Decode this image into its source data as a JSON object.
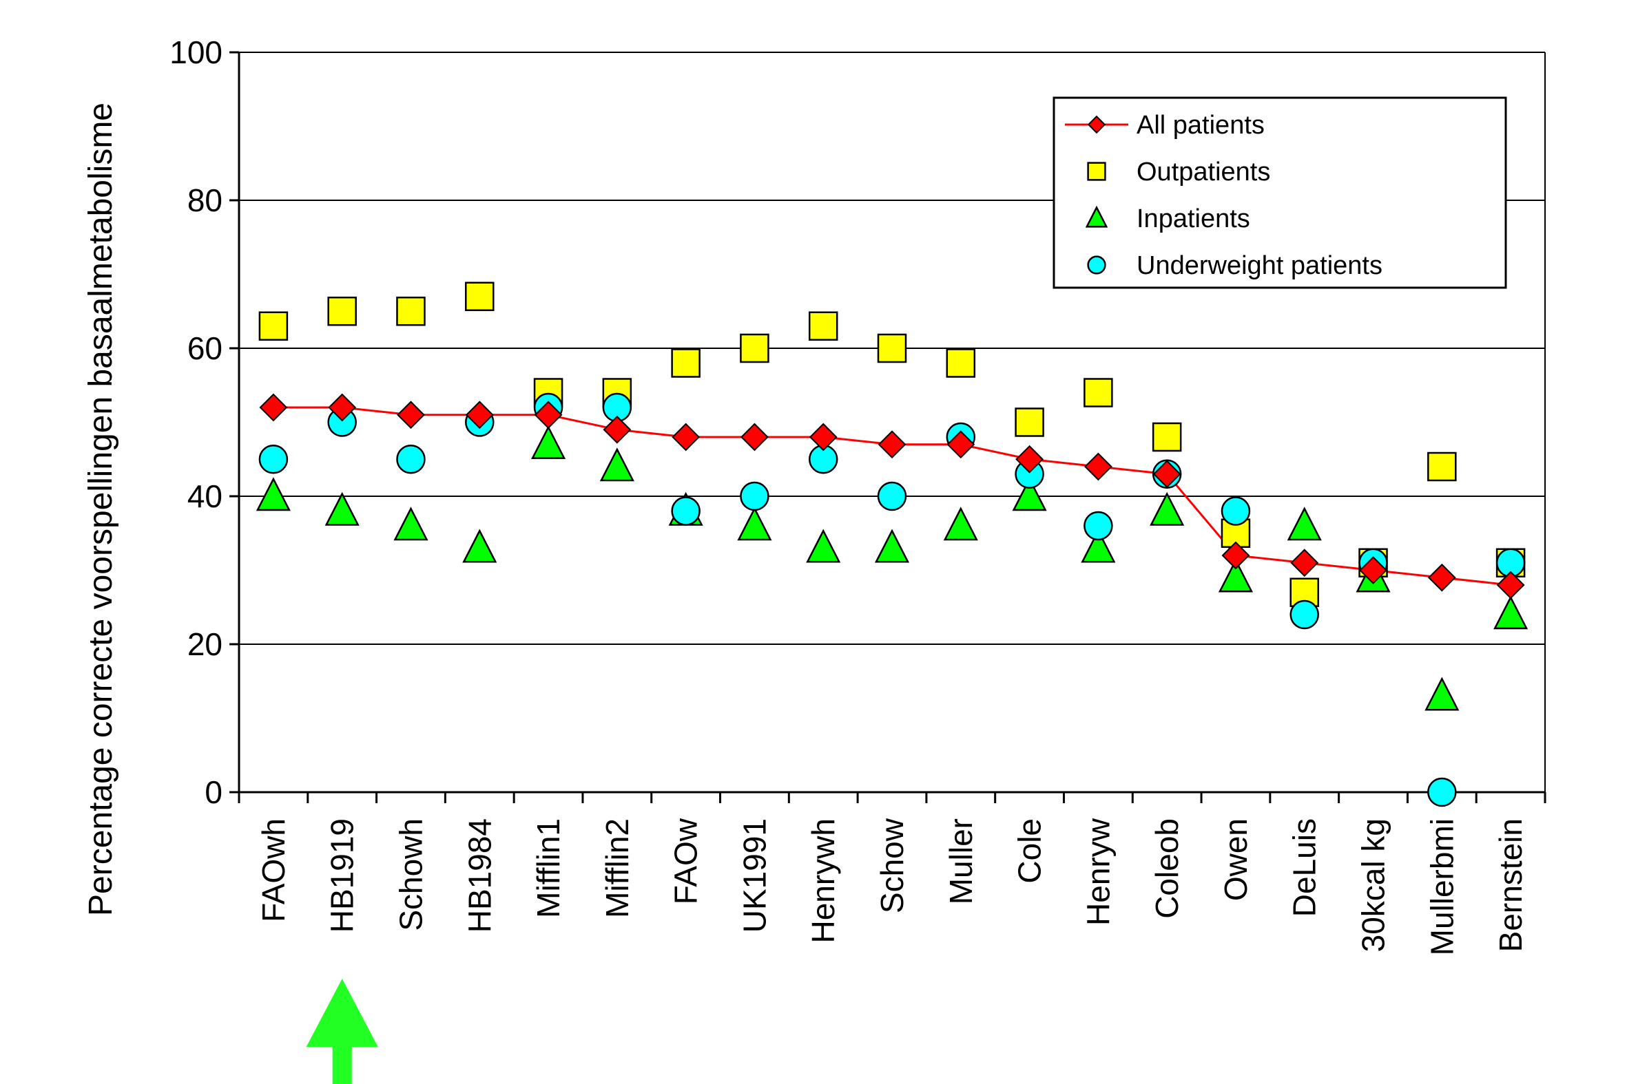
{
  "chart_data": {
    "type": "scatter",
    "title": "",
    "xlabel": "",
    "ylabel": "Percentage correcte voorspellingen basaalmetabolisme",
    "ylim": [
      0,
      100
    ],
    "yticks": [
      0,
      20,
      40,
      60,
      80,
      100
    ],
    "grid": "horizontal",
    "legend_position": "top-right",
    "categories": [
      "FAOwh",
      "HB1919",
      "Schowh",
      "HB1984",
      "Mifflin1",
      "Mifflin2",
      "FAOw",
      "UK1991",
      "Henrywh",
      "Schow",
      "Muller",
      "Cole",
      "Henryw",
      "Coleob",
      "Owen",
      "DeLuis",
      "30kcal kg",
      "Mullerbmi",
      "Bernstein"
    ],
    "series": [
      {
        "name": "All patients",
        "marker": "diamond",
        "line": true,
        "color": "#ff0000",
        "values": [
          52,
          52,
          51,
          51,
          51,
          49,
          48,
          48,
          48,
          47,
          47,
          45,
          44,
          43,
          32,
          31,
          30,
          29,
          28
        ]
      },
      {
        "name": "Outpatients",
        "marker": "square",
        "line": false,
        "color": "#ffff00",
        "values": [
          63,
          65,
          65,
          67,
          54,
          54,
          58,
          60,
          63,
          60,
          58,
          50,
          54,
          48,
          35,
          27,
          31,
          44,
          31
        ]
      },
      {
        "name": "Inpatients",
        "marker": "triangle",
        "line": false,
        "color": "#00ff00",
        "values": [
          40,
          38,
          36,
          33,
          47,
          44,
          38,
          36,
          33,
          33,
          36,
          40,
          33,
          38,
          29,
          36,
          29,
          13,
          24
        ]
      },
      {
        "name": "Underweight patients",
        "marker": "circle",
        "line": false,
        "color": "#00ffff",
        "values": [
          45,
          50,
          45,
          50,
          52,
          52,
          38,
          40,
          45,
          40,
          48,
          43,
          36,
          43,
          38,
          24,
          31,
          0,
          31
        ]
      }
    ],
    "annotation": {
      "type": "arrow",
      "color": "#22ff22",
      "points_to": "HB1919"
    }
  }
}
